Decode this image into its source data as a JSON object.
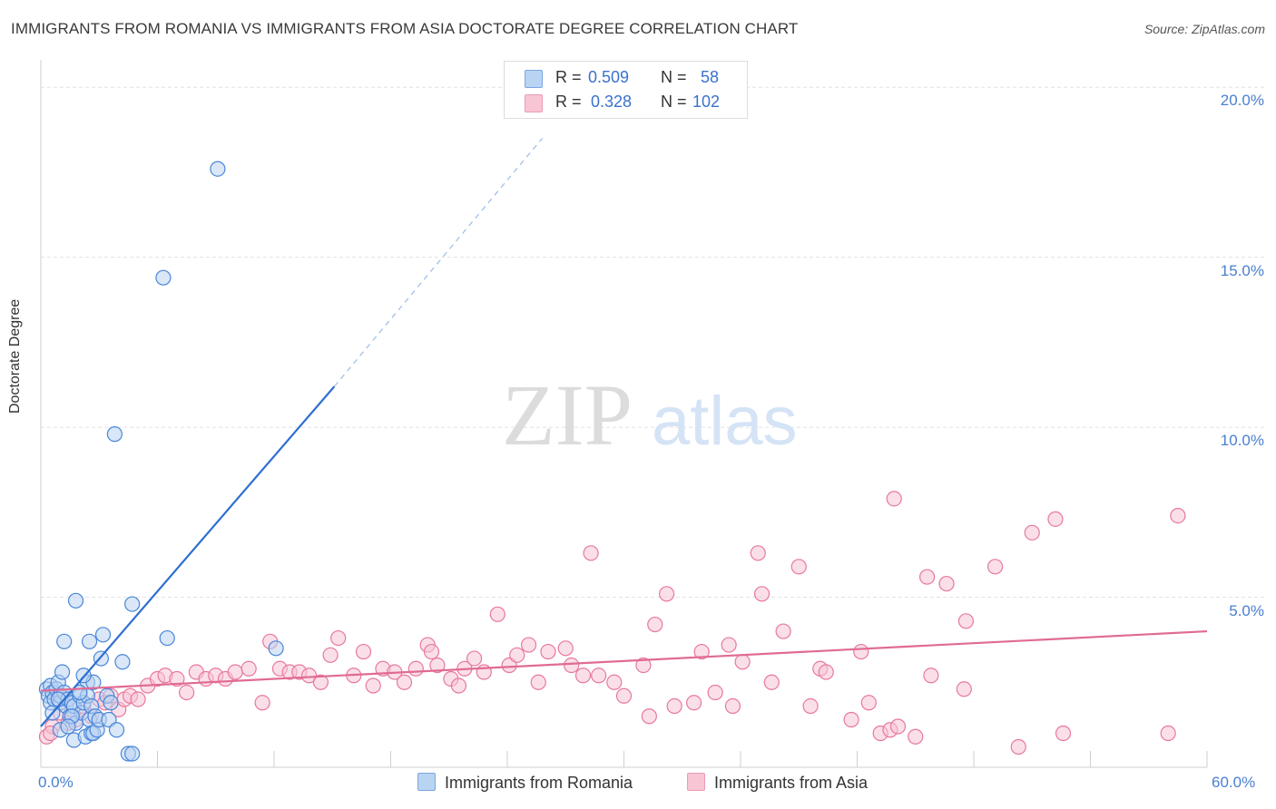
{
  "title": "IMMIGRANTS FROM ROMANIA VS IMMIGRANTS FROM ASIA DOCTORATE DEGREE CORRELATION CHART",
  "source": "Source: ZipAtlas.com",
  "watermark": {
    "zip": "ZIP",
    "atlas": "atlas"
  },
  "legend": {
    "romania": {
      "r_label": "R =",
      "r_value": "0.509",
      "n_label": "N =",
      "n_value": "58"
    },
    "asia": {
      "r_label": "R =",
      "r_value": "0.328",
      "n_label": "N =",
      "n_value": "102"
    }
  },
  "colors": {
    "romania": "#4a86d8",
    "romania_fill": "#b9d3f2",
    "asia": "#e7789d",
    "asia_fill": "#f8c5d5",
    "tick_text": "#4a7fd0"
  },
  "chart_data": {
    "type": "scatter",
    "title": "IMMIGRANTS FROM ROMANIA VS IMMIGRANTS FROM ASIA DOCTORATE DEGREE CORRELATION CHART",
    "xlabel": "",
    "ylabel": "Doctorate Degree",
    "xlim": [
      0,
      60
    ],
    "ylim": [
      0,
      20.7
    ],
    "x_tick_labels": [
      "0.0%",
      "60.0%"
    ],
    "y_ticks": [
      5,
      10,
      15,
      20
    ],
    "y_tick_labels": [
      "5.0%",
      "10.0%",
      "15.0%",
      "20.0%"
    ],
    "grid": true,
    "legend_position": "top-center",
    "series": [
      {
        "name": "Immigrants from Romania",
        "trend": {
          "x0": 0,
          "y0": 1.2,
          "x1": 15.1,
          "y1": 11.2,
          "dashed_to": {
            "x": 25.8,
            "y": 18.5
          }
        },
        "points": [
          [
            0.3,
            2.3
          ],
          [
            0.4,
            2.1
          ],
          [
            0.5,
            2.4
          ],
          [
            0.5,
            1.9
          ],
          [
            0.6,
            2.2
          ],
          [
            0.7,
            2.0
          ],
          [
            0.8,
            2.3
          ],
          [
            0.9,
            2.5
          ],
          [
            1.0,
            1.9
          ],
          [
            1.0,
            2.1
          ],
          [
            1.1,
            2.8
          ],
          [
            1.2,
            2.2
          ],
          [
            1.3,
            1.8
          ],
          [
            1.2,
            3.7
          ],
          [
            1.4,
            2.0
          ],
          [
            1.5,
            1.5
          ],
          [
            1.6,
            1.9
          ],
          [
            1.7,
            1.8
          ],
          [
            1.8,
            1.3
          ],
          [
            1.7,
            0.8
          ],
          [
            1.8,
            4.9
          ],
          [
            2.0,
            2.1
          ],
          [
            2.1,
            1.6
          ],
          [
            2.2,
            1.9
          ],
          [
            2.3,
            0.9
          ],
          [
            2.4,
            2.5
          ],
          [
            2.5,
            1.4
          ],
          [
            2.6,
            1.0
          ],
          [
            2.4,
            2.1
          ],
          [
            2.5,
            3.7
          ],
          [
            2.6,
            1.8
          ],
          [
            2.7,
            2.5
          ],
          [
            2.7,
            1.0
          ],
          [
            2.8,
            1.5
          ],
          [
            2.9,
            1.1
          ],
          [
            3.0,
            1.4
          ],
          [
            3.1,
            3.2
          ],
          [
            3.2,
            3.9
          ],
          [
            3.4,
            2.1
          ],
          [
            3.5,
            1.4
          ],
          [
            3.8,
            9.8
          ],
          [
            3.9,
            1.1
          ],
          [
            4.2,
            3.1
          ],
          [
            4.5,
            0.4
          ],
          [
            4.7,
            4.8
          ],
          [
            4.7,
            0.4
          ],
          [
            6.3,
            14.4
          ],
          [
            6.5,
            3.8
          ],
          [
            9.1,
            17.6
          ],
          [
            12.1,
            3.5
          ],
          [
            1.0,
            1.1
          ],
          [
            1.6,
            1.5
          ],
          [
            2.2,
            2.7
          ],
          [
            0.9,
            2.0
          ],
          [
            0.6,
            1.6
          ],
          [
            1.4,
            1.2
          ],
          [
            3.6,
            1.9
          ],
          [
            2.0,
            2.2
          ]
        ]
      },
      {
        "name": "Immigrants from Asia",
        "trend": {
          "x0": 0,
          "y0": 2.25,
          "x1": 60,
          "y1": 4.0
        },
        "points": [
          [
            0.3,
            0.9
          ],
          [
            0.6,
            1.2
          ],
          [
            1.0,
            1.6
          ],
          [
            1.4,
            1.3
          ],
          [
            1.8,
            1.4
          ],
          [
            2.2,
            1.8
          ],
          [
            2.6,
            1.5
          ],
          [
            3.0,
            2.0
          ],
          [
            3.3,
            1.9
          ],
          [
            3.6,
            2.1
          ],
          [
            4.0,
            1.7
          ],
          [
            4.3,
            2.0
          ],
          [
            4.6,
            2.1
          ],
          [
            5.0,
            2.0
          ],
          [
            5.5,
            2.4
          ],
          [
            6.0,
            2.6
          ],
          [
            6.4,
            2.7
          ],
          [
            7.0,
            2.6
          ],
          [
            7.5,
            2.2
          ],
          [
            8.0,
            2.8
          ],
          [
            8.5,
            2.6
          ],
          [
            9.0,
            2.7
          ],
          [
            9.5,
            2.6
          ],
          [
            10.0,
            2.8
          ],
          [
            10.7,
            2.9
          ],
          [
            11.4,
            1.9
          ],
          [
            11.8,
            3.7
          ],
          [
            12.3,
            2.9
          ],
          [
            12.8,
            2.8
          ],
          [
            13.3,
            2.8
          ],
          [
            13.8,
            2.7
          ],
          [
            14.4,
            2.5
          ],
          [
            14.9,
            3.3
          ],
          [
            15.3,
            3.8
          ],
          [
            16.1,
            2.7
          ],
          [
            16.6,
            3.4
          ],
          [
            17.1,
            2.4
          ],
          [
            17.6,
            2.9
          ],
          [
            18.2,
            2.8
          ],
          [
            18.7,
            2.5
          ],
          [
            19.3,
            2.9
          ],
          [
            19.9,
            3.6
          ],
          [
            20.1,
            3.4
          ],
          [
            20.4,
            3.0
          ],
          [
            21.1,
            2.6
          ],
          [
            21.5,
            2.4
          ],
          [
            21.8,
            2.9
          ],
          [
            22.3,
            3.2
          ],
          [
            22.8,
            2.8
          ],
          [
            23.5,
            4.5
          ],
          [
            24.1,
            3.0
          ],
          [
            24.5,
            3.3
          ],
          [
            25.1,
            3.6
          ],
          [
            25.6,
            2.5
          ],
          [
            26.1,
            3.4
          ],
          [
            27.0,
            3.5
          ],
          [
            27.3,
            3.0
          ],
          [
            27.9,
            2.7
          ],
          [
            28.3,
            6.3
          ],
          [
            28.7,
            2.7
          ],
          [
            29.5,
            2.5
          ],
          [
            30.0,
            2.1
          ],
          [
            31.0,
            3.0
          ],
          [
            31.3,
            1.5
          ],
          [
            31.6,
            4.2
          ],
          [
            32.2,
            5.1
          ],
          [
            32.6,
            1.8
          ],
          [
            33.6,
            1.9
          ],
          [
            34.0,
            3.4
          ],
          [
            34.7,
            2.2
          ],
          [
            35.4,
            3.6
          ],
          [
            35.6,
            1.8
          ],
          [
            36.1,
            3.1
          ],
          [
            36.9,
            6.3
          ],
          [
            37.1,
            5.1
          ],
          [
            37.6,
            2.5
          ],
          [
            38.2,
            4.0
          ],
          [
            39.0,
            5.9
          ],
          [
            39.6,
            1.8
          ],
          [
            40.1,
            2.9
          ],
          [
            40.4,
            2.8
          ],
          [
            41.7,
            1.4
          ],
          [
            42.2,
            3.4
          ],
          [
            42.6,
            1.9
          ],
          [
            43.2,
            1.0
          ],
          [
            43.7,
            1.1
          ],
          [
            43.9,
            7.9
          ],
          [
            44.1,
            1.2
          ],
          [
            45.0,
            0.9
          ],
          [
            45.6,
            5.6
          ],
          [
            45.8,
            2.7
          ],
          [
            46.6,
            5.4
          ],
          [
            47.5,
            2.3
          ],
          [
            47.6,
            4.3
          ],
          [
            49.1,
            5.9
          ],
          [
            50.3,
            0.6
          ],
          [
            51.0,
            6.9
          ],
          [
            52.2,
            7.3
          ],
          [
            52.6,
            1.0
          ],
          [
            58.0,
            1.0
          ],
          [
            58.5,
            7.4
          ],
          [
            0.5,
            1.0
          ]
        ]
      }
    ]
  },
  "bottom_legend": {
    "romania": "Immigrants from Romania",
    "asia": "Immigrants from Asia"
  }
}
